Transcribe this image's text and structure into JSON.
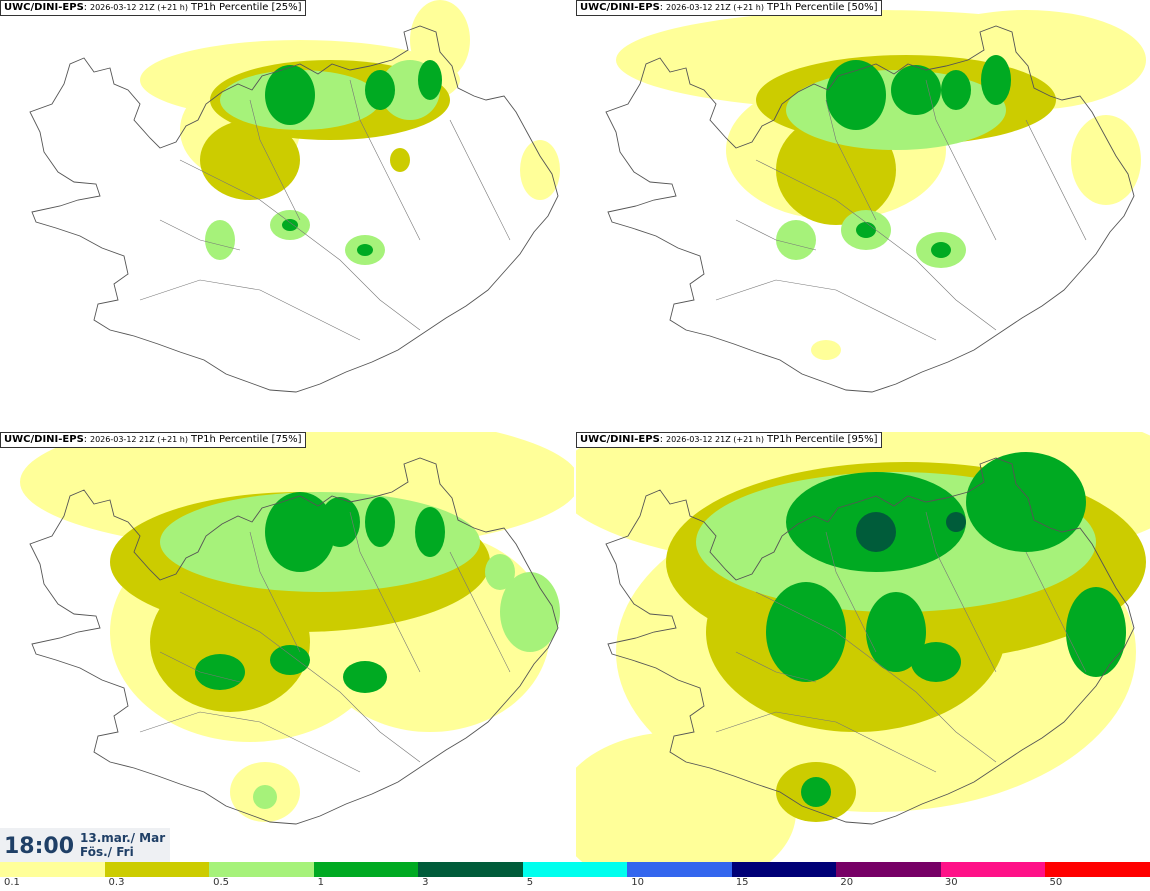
{
  "panels": [
    {
      "source": "UWC/DINI-EPS",
      "run": "2026-03-12 21Z (+21 h)",
      "field": "TP1h Percentile [25%]"
    },
    {
      "source": "UWC/DINI-EPS",
      "run": "2026-03-12 21Z (+21 h)",
      "field": "TP1h Percentile [50%]"
    },
    {
      "source": "UWC/DINI-EPS",
      "run": "2026-03-12 21Z (+21 h)",
      "field": "TP1h Percentile [75%]"
    },
    {
      "source": "UWC/DINI-EPS",
      "run": "2026-03-12 21Z (+21 h)",
      "field": "TP1h Percentile [95%]"
    }
  ],
  "valid_time": {
    "hour": "18:00",
    "date_line1": "13.mar./ Mar",
    "date_line2": "Fös./ Fri"
  },
  "legend": {
    "ticks": [
      "0.1",
      "0.3",
      "0.5",
      "1",
      "3",
      "5",
      "10",
      "15",
      "20",
      "30",
      "50"
    ],
    "colors": [
      "#ffff99",
      "#cccc00",
      "#a6f27a",
      "#00aa22",
      "#005c3a",
      "#00ffee",
      "#3366ee",
      "#000077",
      "#770066",
      "#ff1188",
      "#ff0000"
    ]
  },
  "palette": {
    "level1": "#ffff99",
    "level2": "#cccc00",
    "level3": "#a6f27a",
    "level4": "#00aa22",
    "level5": "#005c3a",
    "coast": "#555555"
  }
}
